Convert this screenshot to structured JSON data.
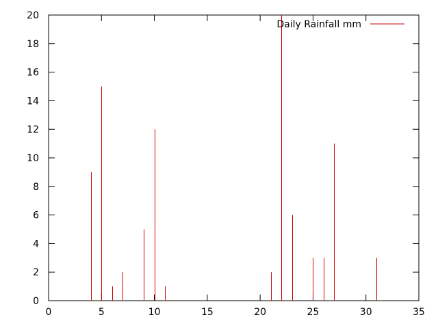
{
  "chart_data": {
    "type": "bar",
    "style": "impulses",
    "title": "",
    "xlabel": "",
    "ylabel": "",
    "xlim": [
      0,
      35
    ],
    "ylim": [
      0,
      20
    ],
    "xticks": [
      0,
      5,
      10,
      15,
      20,
      25,
      30,
      35
    ],
    "yticks": [
      0,
      2,
      4,
      6,
      8,
      10,
      12,
      14,
      16,
      18,
      20
    ],
    "grid": false,
    "legend_position": "top-right",
    "series": [
      {
        "name": "Daily Rainfall mm",
        "color": "#cc0000",
        "x": [
          4,
          5,
          6,
          7,
          9,
          10,
          11,
          21,
          22,
          23,
          25,
          26,
          27,
          31
        ],
        "y": [
          9,
          15,
          1,
          2,
          5,
          12,
          1,
          2,
          20,
          6,
          3,
          3,
          11,
          3
        ]
      }
    ]
  }
}
